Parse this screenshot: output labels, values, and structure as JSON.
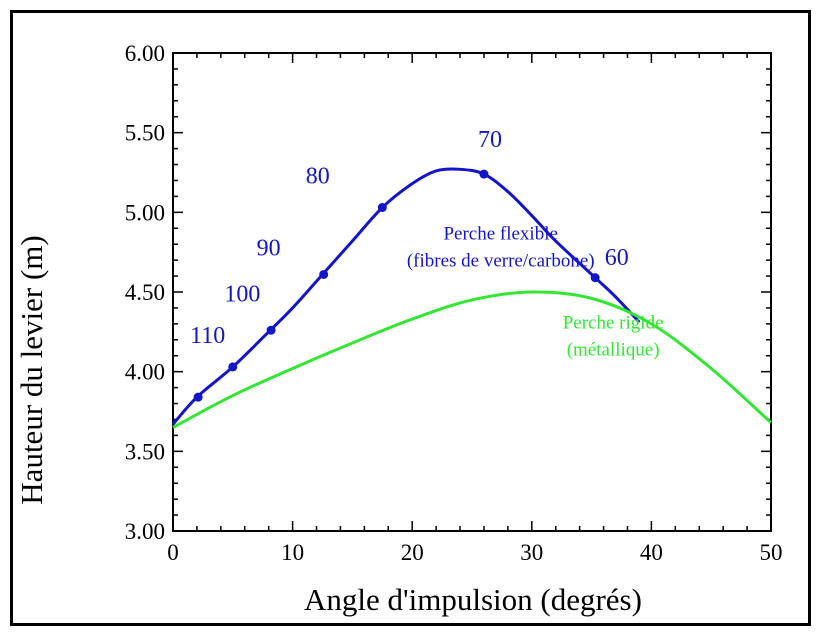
{
  "chart_data": {
    "type": "line",
    "title": "",
    "xlabel": "Angle d'impulsion (degrés)",
    "ylabel": "Hauteur du levier (m)",
    "xlim": [
      0,
      50
    ],
    "ylim": [
      3.0,
      6.0
    ],
    "x_ticks": [
      "0",
      "10",
      "20",
      "30",
      "40",
      "50"
    ],
    "y_ticks": [
      "3.00",
      "3.50",
      "4.00",
      "4.50",
      "5.00",
      "5.50",
      "6.00"
    ],
    "grid": false,
    "series": [
      {
        "name": "Perche flexible (fibres de verre/carbone)",
        "color": "#1414c8",
        "x": [
          0,
          2,
          5,
          8,
          10,
          12.5,
          15,
          17.5,
          20,
          22,
          24,
          26,
          28,
          30,
          32,
          35.3,
          37,
          39
        ],
        "y": [
          3.67,
          3.84,
          4.03,
          4.25,
          4.4,
          4.61,
          4.82,
          5.03,
          5.18,
          5.26,
          5.27,
          5.24,
          5.13,
          4.98,
          4.82,
          4.59,
          4.47,
          4.31
        ]
      },
      {
        "name": "Perche rigide (métallique)",
        "color": "#33e633",
        "x": [
          0,
          5,
          10,
          15,
          20,
          25,
          30,
          35,
          40,
          45,
          50
        ],
        "y": [
          3.65,
          3.85,
          4.02,
          4.18,
          4.33,
          4.45,
          4.5,
          4.46,
          4.3,
          4.02,
          3.68
        ]
      }
    ],
    "markers": [
      {
        "x": 2.1,
        "y": 3.84,
        "label": "110"
      },
      {
        "x": 5.0,
        "y": 4.03,
        "label": "100"
      },
      {
        "x": 8.2,
        "y": 4.26,
        "label": "90"
      },
      {
        "x": 12.6,
        "y": 4.61,
        "label": "80"
      },
      {
        "x": 17.5,
        "y": 5.03,
        "label": "70"
      },
      {
        "x": 26.0,
        "y": 5.24,
        "label": "60"
      },
      {
        "x": 35.3,
        "y": 4.59,
        "label": ""
      }
    ],
    "marker_labels": [
      {
        "text": "110",
        "x": 2.9,
        "y": 4.18
      },
      {
        "text": "100",
        "x": 5.8,
        "y": 4.44
      },
      {
        "text": "90",
        "x": 8.0,
        "y": 4.73
      },
      {
        "text": "80",
        "x": 12.1,
        "y": 5.18
      },
      {
        "text": "70",
        "x": 26.5,
        "y": 5.41
      },
      {
        "text": "60",
        "x": 37.1,
        "y": 4.67
      }
    ],
    "annotations": [
      {
        "text": "Perche flexible",
        "x": 27.4,
        "y": 4.83,
        "color": "#1414c8"
      },
      {
        "text": "(fibres de verre/carbone)",
        "x": 27.4,
        "y": 4.66,
        "color": "#1414c8"
      },
      {
        "text": "Perche rigide",
        "x": 36.8,
        "y": 4.27,
        "color": "#33e633"
      },
      {
        "text": "(métallique)",
        "x": 36.8,
        "y": 4.1,
        "color": "#33e633"
      }
    ]
  }
}
